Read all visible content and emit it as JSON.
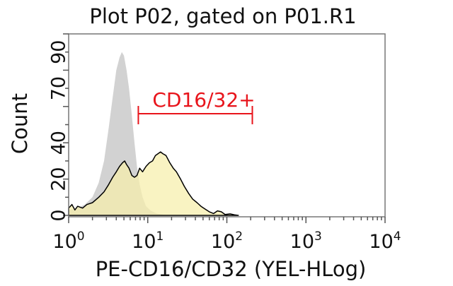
{
  "chart_data": {
    "type": "area",
    "title": "Plot P02, gated on P01.R1",
    "xlabel": "PE-CD16/CD32 (YEL-HLog)",
    "ylabel": "Count",
    "x_scale": "log",
    "xlim": [
      1,
      10000
    ],
    "ylim": [
      0,
      100
    ],
    "x_ticks": [
      {
        "base": "10",
        "exp": "0",
        "value": 1
      },
      {
        "base": "10",
        "exp": "1",
        "value": 10
      },
      {
        "base": "10",
        "exp": "2",
        "value": 100
      },
      {
        "base": "10",
        "exp": "3",
        "value": 1000
      },
      {
        "base": "10",
        "exp": "4",
        "value": 10000
      }
    ],
    "y_ticks": [
      "0",
      "20",
      "40",
      "70",
      "90"
    ],
    "y_tick_values": [
      0,
      20,
      40,
      70,
      90
    ],
    "grid": false,
    "region": {
      "label": "CD16/32+",
      "x_start": 7.6,
      "x_end": 210,
      "color": "#e8141b"
    },
    "series": [
      {
        "fill": "#d2d2d2",
        "stroke": "none",
        "points": [
          [
            1.0,
            3
          ],
          [
            1.3,
            4
          ],
          [
            1.6,
            6
          ],
          [
            2.0,
            10
          ],
          [
            2.4,
            18
          ],
          [
            2.8,
            30
          ],
          [
            3.2,
            48
          ],
          [
            3.6,
            65
          ],
          [
            4.0,
            80
          ],
          [
            4.4,
            87
          ],
          [
            4.7,
            90
          ],
          [
            5.0,
            88
          ],
          [
            5.4,
            80
          ],
          [
            5.8,
            70
          ],
          [
            6.3,
            55
          ],
          [
            6.8,
            40
          ],
          [
            7.3,
            27
          ],
          [
            7.9,
            17
          ],
          [
            8.6,
            10
          ],
          [
            9.5,
            5
          ],
          [
            11,
            2.5
          ],
          [
            13,
            1
          ],
          [
            16,
            0.3
          ],
          [
            20,
            0
          ]
        ]
      },
      {
        "fill": "#f6eeaa",
        "stroke": "#000000",
        "points": [
          [
            1.0,
            4
          ],
          [
            1.1,
            6
          ],
          [
            1.2,
            3
          ],
          [
            1.3,
            5
          ],
          [
            1.5,
            4
          ],
          [
            1.7,
            6
          ],
          [
            2.0,
            7
          ],
          [
            2.4,
            10
          ],
          [
            2.8,
            13
          ],
          [
            3.2,
            17
          ],
          [
            3.6,
            21
          ],
          [
            4.0,
            24
          ],
          [
            4.4,
            27
          ],
          [
            4.8,
            29
          ],
          [
            5.1,
            30
          ],
          [
            5.4,
            28
          ],
          [
            5.8,
            26
          ],
          [
            6.3,
            22
          ],
          [
            6.8,
            21
          ],
          [
            7.3,
            22
          ],
          [
            7.9,
            26
          ],
          [
            8.6,
            24
          ],
          [
            9.5,
            27
          ],
          [
            10.5,
            29
          ],
          [
            11.5,
            30
          ],
          [
            12.5,
            33
          ],
          [
            13.5,
            34
          ],
          [
            14.5,
            35
          ],
          [
            15.5,
            34
          ],
          [
            17,
            33
          ],
          [
            19,
            29
          ],
          [
            21,
            26
          ],
          [
            23,
            24
          ],
          [
            26,
            20
          ],
          [
            29,
            16
          ],
          [
            33,
            12
          ],
          [
            37,
            9
          ],
          [
            42,
            7
          ],
          [
            47,
            5
          ],
          [
            53,
            3.5
          ],
          [
            60,
            2
          ],
          [
            68,
            1
          ],
          [
            76,
            2.5
          ],
          [
            85,
            2
          ],
          [
            95,
            0.5
          ],
          [
            110,
            0.8
          ],
          [
            125,
            0.3
          ],
          [
            140,
            0
          ]
        ]
      }
    ]
  }
}
